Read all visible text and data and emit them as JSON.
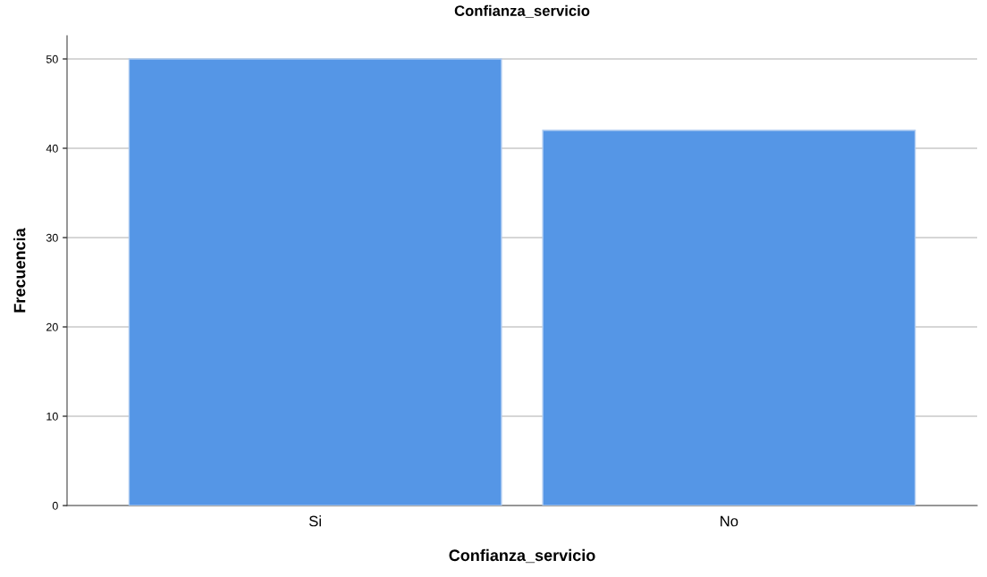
{
  "chart_data": {
    "type": "bar",
    "title": "Confianza_servicio",
    "xlabel": "Confianza_servicio",
    "ylabel": "Frecuencia",
    "categories": [
      "Si",
      "No"
    ],
    "values": [
      50,
      42
    ],
    "color": "#5596e6",
    "ylim": [
      0,
      52.6
    ],
    "yticks": [
      0,
      10,
      20,
      30,
      40,
      50
    ],
    "grid": "y",
    "legend": false
  }
}
